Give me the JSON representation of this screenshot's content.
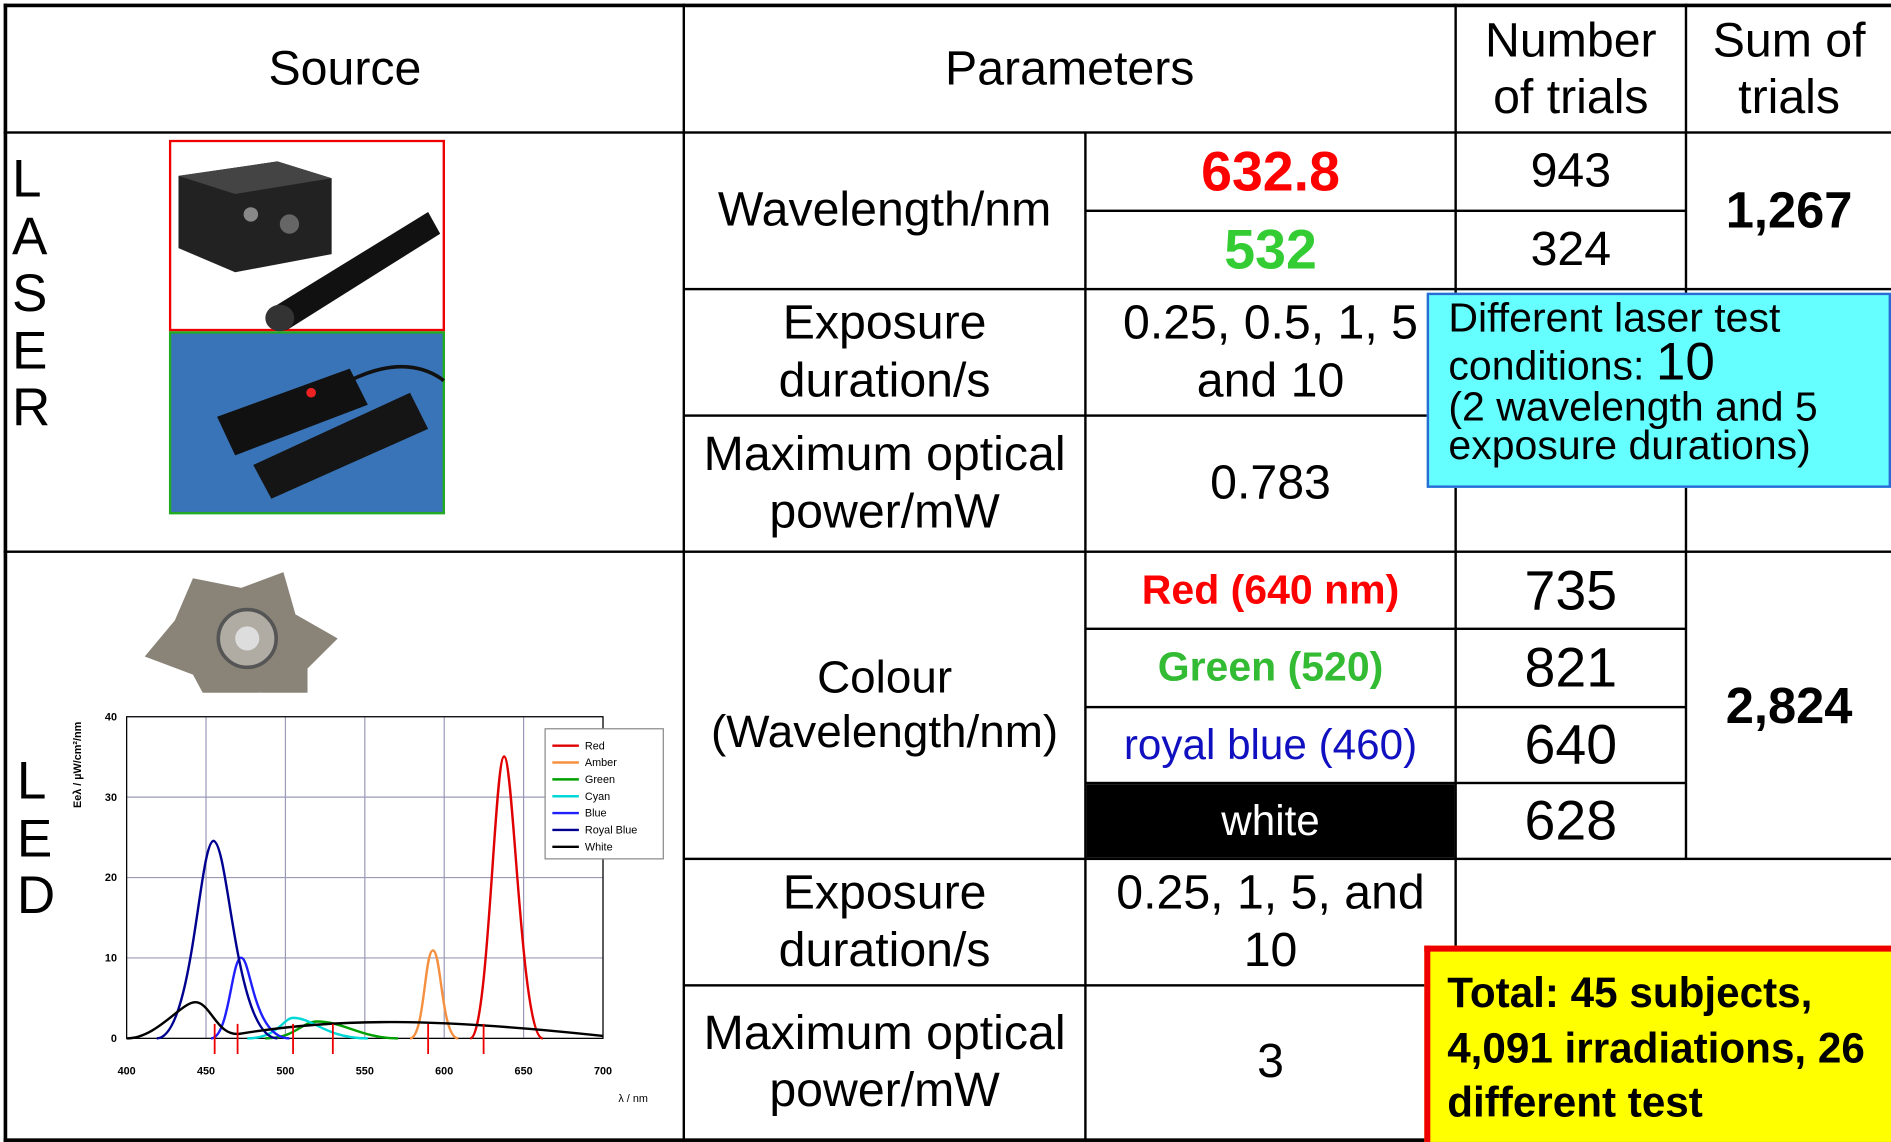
{
  "header": {
    "source": "Source",
    "parameters": "Parameters",
    "number_of_trials": "Number of trials",
    "sum_of_trials": "Sum of trials"
  },
  "laser": {
    "label": "LASER",
    "wavelength_label": "Wavelength/nm",
    "wavelengths": [
      "632.8",
      "532"
    ],
    "trials": [
      "943",
      "324"
    ],
    "sum": "1,267",
    "exposure_label": "Exposure duration/s",
    "exposure": "0.25, 0.5, 1, 5 and 10",
    "power_label": "Maximum optical power/mW",
    "power": "0.783"
  },
  "led": {
    "label": "LED",
    "colour_label": "Colour (Wavelength/nm)",
    "colours": [
      "Red (640 nm)",
      "Green (520)",
      "royal blue (460)",
      "white"
    ],
    "trials": [
      "735",
      "821",
      "640",
      "628"
    ],
    "sum": "2,824",
    "exposure_label": "Exposure duration/s",
    "exposure": "0.25, 1, 5, and 10",
    "power_label": "Maximum optical power/mW",
    "power": "3"
  },
  "laser_note": {
    "text": "Different laser test conditions:",
    "number": "10",
    "detail": "(2 wavelength and 5 exposure durations)"
  },
  "total_note": "Total: 45 subjects, 4,091 irradiations, 26 different test",
  "spectrum": {
    "y_label": "Eeλ / µW/cm²/nm",
    "x_label": "λ / nm",
    "xticks": [
      400,
      450,
      500,
      550,
      600,
      650,
      700
    ],
    "yticks": [
      0,
      10,
      20,
      30,
      40
    ],
    "legend": [
      "Red",
      "Amber",
      "Green",
      "Cyan",
      "Blue",
      "Royal Blue",
      "White"
    ],
    "legend_colors": [
      "#e00000",
      "#f59040",
      "#00a000",
      "#00d8d8",
      "#2020ff",
      "#000090",
      "#000000"
    ]
  }
}
